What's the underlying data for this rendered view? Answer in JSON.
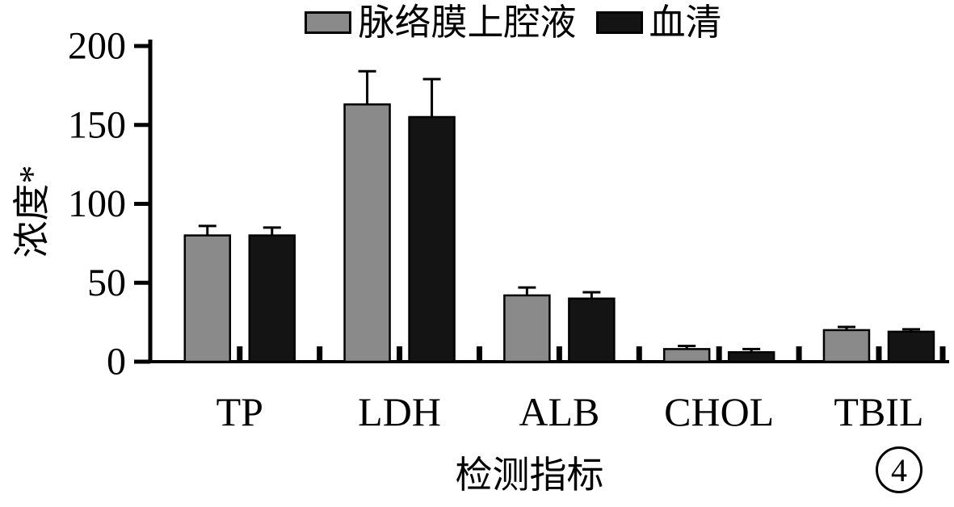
{
  "figure_number": "4",
  "chart_data": {
    "type": "bar",
    "title": "",
    "categories": [
      "TP",
      "LDH",
      "ALB",
      "CHOL",
      "TBIL"
    ],
    "series": [
      {
        "name": "脉络膜上腔液",
        "color": "#8a8a8a",
        "values": [
          80,
          163,
          42,
          8,
          20
        ],
        "errors": [
          6,
          21,
          5,
          2,
          2
        ]
      },
      {
        "name": "血清",
        "color": "#141414",
        "values": [
          80,
          155,
          40,
          6,
          19
        ],
        "errors": [
          5,
          24,
          4,
          2,
          1.5
        ]
      }
    ],
    "xlabel": "检测指标",
    "ylabel": "浓度*",
    "ylim": [
      0,
      200
    ],
    "yticks": [
      0,
      50,
      100,
      150,
      200
    ],
    "legend_position": "top",
    "grid": false,
    "error_bars": true
  }
}
